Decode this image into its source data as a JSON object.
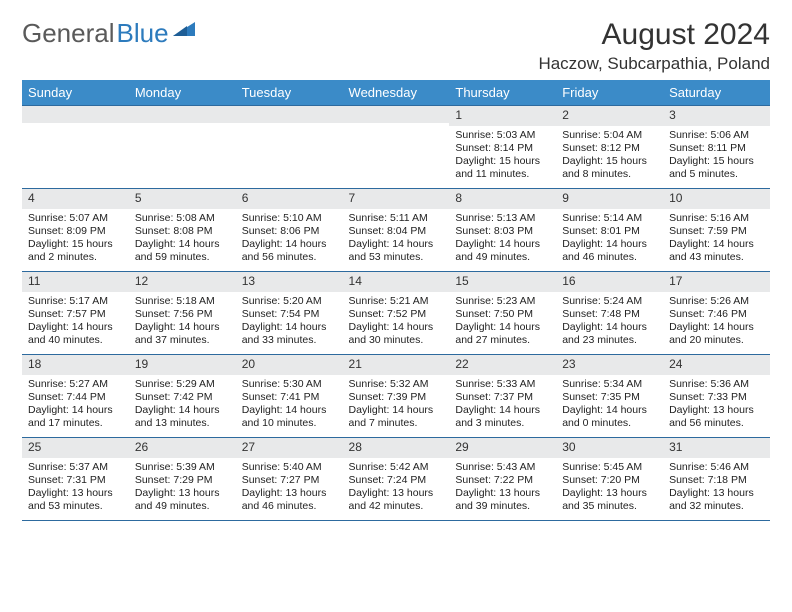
{
  "logo": {
    "text_gray": "General",
    "text_blue": "Blue"
  },
  "title": "August 2024",
  "location": "Haczow, Subcarpathia, Poland",
  "colors": {
    "header_bg": "#3b8bc8",
    "header_text": "#ffffff",
    "band_bg": "#e8e9ea",
    "rule": "#2d6a9e",
    "logo_gray": "#5a5a5a",
    "logo_blue": "#2d7bbd"
  },
  "day_headers": [
    "Sunday",
    "Monday",
    "Tuesday",
    "Wednesday",
    "Thursday",
    "Friday",
    "Saturday"
  ],
  "weeks": [
    [
      {
        "n": "",
        "sr": "",
        "ss": "",
        "dl1": "",
        "dl2": ""
      },
      {
        "n": "",
        "sr": "",
        "ss": "",
        "dl1": "",
        "dl2": ""
      },
      {
        "n": "",
        "sr": "",
        "ss": "",
        "dl1": "",
        "dl2": ""
      },
      {
        "n": "",
        "sr": "",
        "ss": "",
        "dl1": "",
        "dl2": ""
      },
      {
        "n": "1",
        "sr": "Sunrise: 5:03 AM",
        "ss": "Sunset: 8:14 PM",
        "dl1": "Daylight: 15 hours",
        "dl2": "and 11 minutes."
      },
      {
        "n": "2",
        "sr": "Sunrise: 5:04 AM",
        "ss": "Sunset: 8:12 PM",
        "dl1": "Daylight: 15 hours",
        "dl2": "and 8 minutes."
      },
      {
        "n": "3",
        "sr": "Sunrise: 5:06 AM",
        "ss": "Sunset: 8:11 PM",
        "dl1": "Daylight: 15 hours",
        "dl2": "and 5 minutes."
      }
    ],
    [
      {
        "n": "4",
        "sr": "Sunrise: 5:07 AM",
        "ss": "Sunset: 8:09 PM",
        "dl1": "Daylight: 15 hours",
        "dl2": "and 2 minutes."
      },
      {
        "n": "5",
        "sr": "Sunrise: 5:08 AM",
        "ss": "Sunset: 8:08 PM",
        "dl1": "Daylight: 14 hours",
        "dl2": "and 59 minutes."
      },
      {
        "n": "6",
        "sr": "Sunrise: 5:10 AM",
        "ss": "Sunset: 8:06 PM",
        "dl1": "Daylight: 14 hours",
        "dl2": "and 56 minutes."
      },
      {
        "n": "7",
        "sr": "Sunrise: 5:11 AM",
        "ss": "Sunset: 8:04 PM",
        "dl1": "Daylight: 14 hours",
        "dl2": "and 53 minutes."
      },
      {
        "n": "8",
        "sr": "Sunrise: 5:13 AM",
        "ss": "Sunset: 8:03 PM",
        "dl1": "Daylight: 14 hours",
        "dl2": "and 49 minutes."
      },
      {
        "n": "9",
        "sr": "Sunrise: 5:14 AM",
        "ss": "Sunset: 8:01 PM",
        "dl1": "Daylight: 14 hours",
        "dl2": "and 46 minutes."
      },
      {
        "n": "10",
        "sr": "Sunrise: 5:16 AM",
        "ss": "Sunset: 7:59 PM",
        "dl1": "Daylight: 14 hours",
        "dl2": "and 43 minutes."
      }
    ],
    [
      {
        "n": "11",
        "sr": "Sunrise: 5:17 AM",
        "ss": "Sunset: 7:57 PM",
        "dl1": "Daylight: 14 hours",
        "dl2": "and 40 minutes."
      },
      {
        "n": "12",
        "sr": "Sunrise: 5:18 AM",
        "ss": "Sunset: 7:56 PM",
        "dl1": "Daylight: 14 hours",
        "dl2": "and 37 minutes."
      },
      {
        "n": "13",
        "sr": "Sunrise: 5:20 AM",
        "ss": "Sunset: 7:54 PM",
        "dl1": "Daylight: 14 hours",
        "dl2": "and 33 minutes."
      },
      {
        "n": "14",
        "sr": "Sunrise: 5:21 AM",
        "ss": "Sunset: 7:52 PM",
        "dl1": "Daylight: 14 hours",
        "dl2": "and 30 minutes."
      },
      {
        "n": "15",
        "sr": "Sunrise: 5:23 AM",
        "ss": "Sunset: 7:50 PM",
        "dl1": "Daylight: 14 hours",
        "dl2": "and 27 minutes."
      },
      {
        "n": "16",
        "sr": "Sunrise: 5:24 AM",
        "ss": "Sunset: 7:48 PM",
        "dl1": "Daylight: 14 hours",
        "dl2": "and 23 minutes."
      },
      {
        "n": "17",
        "sr": "Sunrise: 5:26 AM",
        "ss": "Sunset: 7:46 PM",
        "dl1": "Daylight: 14 hours",
        "dl2": "and 20 minutes."
      }
    ],
    [
      {
        "n": "18",
        "sr": "Sunrise: 5:27 AM",
        "ss": "Sunset: 7:44 PM",
        "dl1": "Daylight: 14 hours",
        "dl2": "and 17 minutes."
      },
      {
        "n": "19",
        "sr": "Sunrise: 5:29 AM",
        "ss": "Sunset: 7:42 PM",
        "dl1": "Daylight: 14 hours",
        "dl2": "and 13 minutes."
      },
      {
        "n": "20",
        "sr": "Sunrise: 5:30 AM",
        "ss": "Sunset: 7:41 PM",
        "dl1": "Daylight: 14 hours",
        "dl2": "and 10 minutes."
      },
      {
        "n": "21",
        "sr": "Sunrise: 5:32 AM",
        "ss": "Sunset: 7:39 PM",
        "dl1": "Daylight: 14 hours",
        "dl2": "and 7 minutes."
      },
      {
        "n": "22",
        "sr": "Sunrise: 5:33 AM",
        "ss": "Sunset: 7:37 PM",
        "dl1": "Daylight: 14 hours",
        "dl2": "and 3 minutes."
      },
      {
        "n": "23",
        "sr": "Sunrise: 5:34 AM",
        "ss": "Sunset: 7:35 PM",
        "dl1": "Daylight: 14 hours",
        "dl2": "and 0 minutes."
      },
      {
        "n": "24",
        "sr": "Sunrise: 5:36 AM",
        "ss": "Sunset: 7:33 PM",
        "dl1": "Daylight: 13 hours",
        "dl2": "and 56 minutes."
      }
    ],
    [
      {
        "n": "25",
        "sr": "Sunrise: 5:37 AM",
        "ss": "Sunset: 7:31 PM",
        "dl1": "Daylight: 13 hours",
        "dl2": "and 53 minutes."
      },
      {
        "n": "26",
        "sr": "Sunrise: 5:39 AM",
        "ss": "Sunset: 7:29 PM",
        "dl1": "Daylight: 13 hours",
        "dl2": "and 49 minutes."
      },
      {
        "n": "27",
        "sr": "Sunrise: 5:40 AM",
        "ss": "Sunset: 7:27 PM",
        "dl1": "Daylight: 13 hours",
        "dl2": "and 46 minutes."
      },
      {
        "n": "28",
        "sr": "Sunrise: 5:42 AM",
        "ss": "Sunset: 7:24 PM",
        "dl1": "Daylight: 13 hours",
        "dl2": "and 42 minutes."
      },
      {
        "n": "29",
        "sr": "Sunrise: 5:43 AM",
        "ss": "Sunset: 7:22 PM",
        "dl1": "Daylight: 13 hours",
        "dl2": "and 39 minutes."
      },
      {
        "n": "30",
        "sr": "Sunrise: 5:45 AM",
        "ss": "Sunset: 7:20 PM",
        "dl1": "Daylight: 13 hours",
        "dl2": "and 35 minutes."
      },
      {
        "n": "31",
        "sr": "Sunrise: 5:46 AM",
        "ss": "Sunset: 7:18 PM",
        "dl1": "Daylight: 13 hours",
        "dl2": "and 32 minutes."
      }
    ]
  ]
}
